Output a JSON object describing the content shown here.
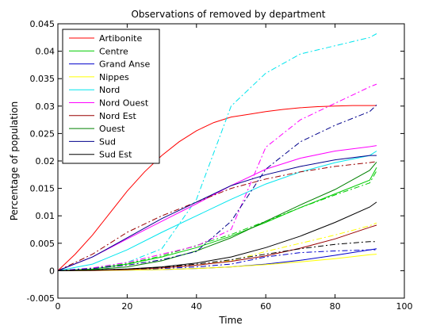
{
  "chart_data": {
    "type": "line",
    "title": "Observations of removed by department",
    "xlabel": "Time",
    "ylabel": "Percentage of population",
    "xlim": [
      0,
      100
    ],
    "ylim": [
      -0.005,
      0.045
    ],
    "xticks": [
      0,
      20,
      40,
      60,
      80,
      100
    ],
    "yticks": [
      -0.005,
      0,
      0.005,
      0.01,
      0.015,
      0.02,
      0.025,
      0.03,
      0.035,
      0.04,
      0.045
    ],
    "xtick_labels": [
      "0",
      "20",
      "40",
      "60",
      "80",
      "100"
    ],
    "ytick_labels": [
      "-0.005",
      "0",
      "0.005",
      "0.01",
      "0.015",
      "0.02",
      "0.025",
      "0.03",
      "0.035",
      "0.04",
      "0.045"
    ],
    "grid": false,
    "legend_position": "top-left",
    "series": [
      {
        "name": "Artibonite",
        "color": "#ff0000",
        "x": [
          0,
          5,
          10,
          15,
          20,
          25,
          30,
          35,
          40,
          45,
          50,
          55,
          60,
          65,
          70,
          75,
          80,
          85,
          90,
          92
        ],
        "solid": [
          0,
          0.003,
          0.0065,
          0.0105,
          0.0145,
          0.018,
          0.021,
          0.0235,
          0.0255,
          0.027,
          0.028,
          0.0285,
          0.029,
          0.0294,
          0.0297,
          0.0299,
          0.03,
          0.0301,
          0.0301,
          0.0301
        ],
        "dashed": null
      },
      {
        "name": "Centre",
        "color": "#00cc00",
        "x": [
          0,
          10,
          20,
          30,
          40,
          50,
          60,
          70,
          80,
          90,
          92
        ],
        "solid": [
          0,
          0.0003,
          0.0012,
          0.0025,
          0.0042,
          0.0063,
          0.0088,
          0.0115,
          0.014,
          0.0165,
          0.0188
        ],
        "dashed": [
          0,
          0.0004,
          0.0013,
          0.0027,
          0.0046,
          0.0066,
          0.009,
          0.0115,
          0.0138,
          0.016,
          0.0182
        ]
      },
      {
        "name": "Grand Anse",
        "color": "#0000cc",
        "x": [
          0,
          10,
          20,
          30,
          40,
          50,
          60,
          70,
          80,
          90,
          92
        ],
        "solid": [
          0,
          5e-05,
          0.0001,
          0.0002,
          0.0004,
          0.0007,
          0.0012,
          0.0019,
          0.0028,
          0.0038,
          0.004
        ],
        "dashed": [
          0,
          0.0001,
          0.0002,
          0.0004,
          0.0007,
          0.0012,
          0.0025,
          0.0033,
          0.0036,
          0.0038,
          0.0038
        ]
      },
      {
        "name": "Nippes",
        "color": "#ffff00",
        "x": [
          0,
          10,
          20,
          30,
          40,
          50,
          60,
          70,
          80,
          90,
          92
        ],
        "solid": [
          0,
          3e-05,
          8e-05,
          0.0002,
          0.0004,
          0.0007,
          0.0011,
          0.0016,
          0.0022,
          0.0029,
          0.003
        ],
        "dashed": [
          0,
          0.0001,
          0.0002,
          0.0005,
          0.001,
          0.0018,
          0.0035,
          0.005,
          0.0065,
          0.0082,
          0.0087
        ]
      },
      {
        "name": "Nord",
        "color": "#00e5ee",
        "x": [
          0,
          10,
          20,
          30,
          40,
          50,
          60,
          70,
          80,
          90,
          92
        ],
        "solid": [
          0,
          0.0012,
          0.0038,
          0.007,
          0.01,
          0.013,
          0.0158,
          0.018,
          0.0197,
          0.021,
          0.0218
        ],
        "dashed": [
          0,
          0.0005,
          0.0015,
          0.004,
          0.013,
          0.03,
          0.036,
          0.0395,
          0.041,
          0.0425,
          0.0432
        ]
      },
      {
        "name": "Nord Ouest",
        "color": "#ff00ff",
        "x": [
          0,
          10,
          20,
          30,
          40,
          50,
          60,
          70,
          80,
          90,
          92
        ],
        "solid": [
          0,
          0.0025,
          0.0058,
          0.009,
          0.0122,
          0.0155,
          0.0185,
          0.0205,
          0.0218,
          0.0226,
          0.0228
        ],
        "dashed": [
          0,
          0.0005,
          0.0015,
          0.003,
          0.0045,
          0.0075,
          0.0225,
          0.0275,
          0.0305,
          0.0335,
          0.034
        ]
      },
      {
        "name": "Nord Est",
        "color": "#990000",
        "x": [
          0,
          10,
          20,
          30,
          40,
          50,
          60,
          70,
          80,
          90,
          92
        ],
        "solid": [
          0,
          5e-05,
          0.0002,
          0.0005,
          0.001,
          0.0017,
          0.0027,
          0.0041,
          0.0058,
          0.0079,
          0.0083
        ],
        "dashed": [
          0,
          0.003,
          0.007,
          0.01,
          0.0125,
          0.015,
          0.0167,
          0.018,
          0.019,
          0.0197,
          0.0199
        ]
      },
      {
        "name": "Ouest",
        "color": "#008000",
        "x": [
          0,
          10,
          20,
          30,
          40,
          50,
          60,
          70,
          80,
          90,
          92
        ],
        "solid": [
          0,
          0.0002,
          0.0007,
          0.0018,
          0.0036,
          0.006,
          0.009,
          0.012,
          0.0148,
          0.0183,
          0.0198
        ],
        "dashed": null
      },
      {
        "name": "Sud",
        "color": "#00008b",
        "x": [
          0,
          10,
          20,
          30,
          40,
          50,
          60,
          70,
          80,
          90,
          92
        ],
        "solid": [
          0,
          0.0025,
          0.006,
          0.0095,
          0.0125,
          0.0155,
          0.0175,
          0.019,
          0.0202,
          0.021,
          0.021
        ],
        "dashed": [
          0,
          0.0004,
          0.001,
          0.002,
          0.0035,
          0.009,
          0.0185,
          0.0235,
          0.0265,
          0.029,
          0.0302
        ]
      },
      {
        "name": "Sud Est",
        "color": "#000000",
        "x": [
          0,
          10,
          20,
          30,
          40,
          50,
          60,
          70,
          80,
          90,
          92
        ],
        "solid": [
          0,
          0.0001,
          0.0003,
          0.0007,
          0.0014,
          0.0025,
          0.0042,
          0.0063,
          0.0088,
          0.0116,
          0.0125
        ],
        "dashed": [
          0,
          0.0001,
          0.0003,
          0.0006,
          0.0012,
          0.002,
          0.003,
          0.004,
          0.0048,
          0.0053,
          0.0053
        ]
      }
    ]
  }
}
